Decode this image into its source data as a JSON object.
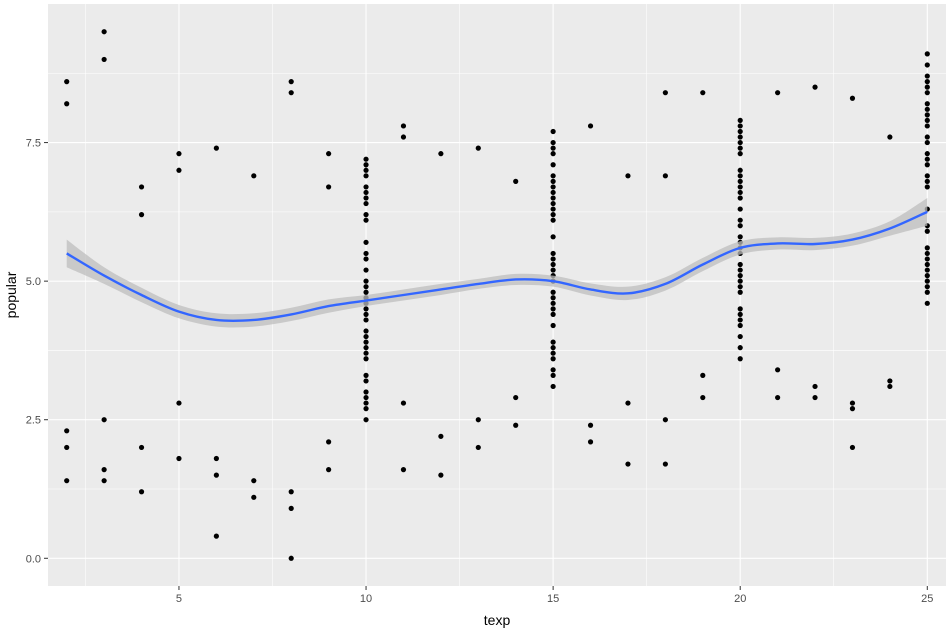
{
  "chart_data": {
    "type": "scatter",
    "xlabel": "texp",
    "ylabel": "popular",
    "xlim": [
      1.5,
      25.5
    ],
    "ylim": [
      -0.5,
      10.0
    ],
    "x_ticks": [
      5,
      10,
      15,
      20,
      25
    ],
    "x_tick_labels": [
      "5",
      "10",
      "15",
      "20",
      "25"
    ],
    "y_ticks": [
      0.0,
      2.5,
      5.0,
      7.5
    ],
    "y_tick_labels": [
      "0.0",
      "2.5",
      "5.0",
      "7.5"
    ],
    "grid": true,
    "panel_color": "#ebebeb",
    "grid_color": "#ffffff",
    "point_color": "#000000",
    "smooth_color": "#3366ff",
    "ribbon_color": "#bdbdbd",
    "scatter_columns": [
      {
        "x": 2,
        "min": 1.4,
        "max": 8.6,
        "values": [
          1.4,
          2.0,
          2.3,
          8.2,
          8.6
        ]
      },
      {
        "x": 3,
        "min": 1.4,
        "max": 9.5,
        "values": [
          1.4,
          1.6,
          2.5,
          9.0,
          9.5
        ]
      },
      {
        "x": 4,
        "min": 1.2,
        "max": 6.7,
        "values": [
          1.2,
          2.0,
          6.2,
          6.7
        ]
      },
      {
        "x": 5,
        "min": 1.8,
        "max": 7.3,
        "values": [
          1.8,
          2.8,
          7.0,
          7.3
        ]
      },
      {
        "x": 6,
        "min": 0.4,
        "max": 7.4,
        "values": [
          0.4,
          1.5,
          1.8,
          7.4
        ]
      },
      {
        "x": 7,
        "min": 1.1,
        "max": 6.9,
        "values": [
          1.1,
          1.4,
          6.9
        ]
      },
      {
        "x": 8,
        "min": 0.0,
        "max": 8.6,
        "values": [
          0.0,
          0.9,
          1.2,
          8.4,
          8.6
        ]
      },
      {
        "x": 9,
        "min": 1.6,
        "max": 7.3,
        "values": [
          1.6,
          2.1,
          6.7,
          7.3
        ]
      },
      {
        "x": 10,
        "min": 2.5,
        "max": 7.2,
        "values": [
          2.5,
          7.2
        ]
      },
      {
        "x": 11,
        "min": 1.6,
        "max": 7.8,
        "values": [
          1.6,
          2.8,
          7.6,
          7.8
        ]
      },
      {
        "x": 12,
        "min": 1.5,
        "max": 7.3,
        "values": [
          1.5,
          2.2,
          7.3
        ]
      },
      {
        "x": 13,
        "min": 2.0,
        "max": 7.4,
        "values": [
          2.0,
          2.5,
          7.4
        ]
      },
      {
        "x": 14,
        "min": 2.4,
        "max": 6.8,
        "values": [
          2.4,
          2.9,
          6.8
        ]
      },
      {
        "x": 15,
        "min": 3.1,
        "max": 7.7,
        "values": [
          3.1,
          7.7
        ]
      },
      {
        "x": 16,
        "min": 2.1,
        "max": 7.8,
        "values": [
          2.1,
          2.4,
          7.8
        ]
      },
      {
        "x": 17,
        "min": 1.7,
        "max": 6.9,
        "values": [
          1.7,
          2.8,
          6.9
        ]
      },
      {
        "x": 18,
        "min": 1.7,
        "max": 8.4,
        "values": [
          1.7,
          2.5,
          6.9,
          8.4
        ]
      },
      {
        "x": 19,
        "min": 2.9,
        "max": 8.4,
        "values": [
          2.9,
          3.3,
          8.4
        ]
      },
      {
        "x": 20,
        "min": 3.6,
        "max": 7.9,
        "values": [
          3.6,
          7.9
        ]
      },
      {
        "x": 21,
        "min": 2.9,
        "max": 8.4,
        "values": [
          2.9,
          3.4,
          8.4
        ]
      },
      {
        "x": 22,
        "min": 2.9,
        "max": 8.5,
        "values": [
          2.9,
          3.1,
          8.5
        ]
      },
      {
        "x": 23,
        "min": 2.0,
        "max": 8.3,
        "values": [
          2.0,
          2.7,
          2.8,
          8.3
        ]
      },
      {
        "x": 24,
        "min": 3.1,
        "max": 7.6,
        "values": [
          3.1,
          3.2,
          7.6
        ]
      },
      {
        "x": 25,
        "min": 4.6,
        "max": 9.1,
        "values": [
          4.6,
          9.1
        ]
      }
    ],
    "smooth_line": {
      "x": [
        2,
        3,
        4,
        5,
        6,
        7,
        8,
        9,
        10,
        11,
        12,
        13,
        14,
        15,
        16,
        17,
        18,
        19,
        20,
        21,
        22,
        23,
        24,
        25
      ],
      "y": [
        5.5,
        5.1,
        4.75,
        4.45,
        4.3,
        4.3,
        4.4,
        4.55,
        4.65,
        4.75,
        4.85,
        4.95,
        5.03,
        5.0,
        4.85,
        4.78,
        4.95,
        5.3,
        5.6,
        5.68,
        5.67,
        5.75,
        5.95,
        6.25
      ],
      "ymin": [
        5.25,
        4.95,
        4.62,
        4.33,
        4.18,
        4.18,
        4.28,
        4.43,
        4.55,
        4.65,
        4.75,
        4.86,
        4.93,
        4.9,
        4.74,
        4.66,
        4.83,
        5.18,
        5.48,
        5.57,
        5.56,
        5.64,
        5.82,
        6.0
      ],
      "ymax": [
        5.75,
        5.25,
        4.88,
        4.57,
        4.42,
        4.42,
        4.52,
        4.67,
        4.75,
        4.85,
        4.95,
        5.04,
        5.13,
        5.1,
        4.96,
        4.9,
        5.07,
        5.42,
        5.72,
        5.79,
        5.78,
        5.86,
        6.08,
        6.5
      ]
    }
  }
}
